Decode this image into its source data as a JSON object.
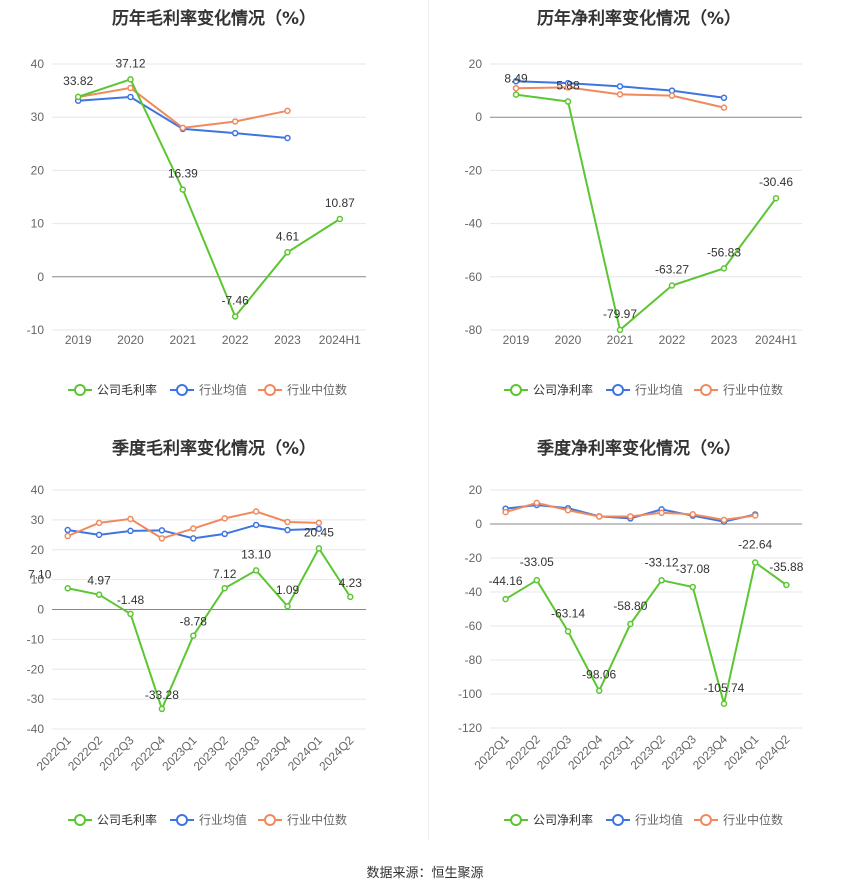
{
  "source_text": "数据来源：恒生聚源",
  "colors": {
    "company": "#5cc632",
    "avg": "#3e75e0",
    "median": "#f08a5d",
    "grid": "#e4e6ef",
    "axis": "#666666",
    "label": "#333333"
  },
  "chart_data": [
    {
      "type": "line",
      "title": "历年毛利率变化情况（%）",
      "categories": [
        "2019",
        "2020",
        "2021",
        "2022",
        "2023",
        "2024H1"
      ],
      "ylim": [
        -10,
        40
      ],
      "yticks": [
        "-10",
        "0",
        "10",
        "20",
        "30",
        "40"
      ],
      "grid": true,
      "legend_position": "bottom",
      "series": [
        {
          "name": "公司毛利率",
          "key": "company",
          "values": [
            33.82,
            37.12,
            16.39,
            -7.46,
            4.61,
            10.87
          ],
          "labels": [
            "33.82",
            "37.12",
            "16.39",
            "-7.46",
            "4.61",
            "10.87"
          ]
        },
        {
          "name": "行业均值",
          "key": "avg",
          "values": [
            33.1,
            33.8,
            27.8,
            27.0,
            26.1,
            null
          ]
        },
        {
          "name": "行业中位数",
          "key": "median",
          "values": [
            33.8,
            35.5,
            28.0,
            29.2,
            31.2,
            null
          ]
        }
      ]
    },
    {
      "type": "line",
      "title": "历年净利率变化情况（%）",
      "categories": [
        "2019",
        "2020",
        "2021",
        "2022",
        "2023",
        "2024H1"
      ],
      "ylim": [
        -80,
        20
      ],
      "yticks": [
        "-80",
        "-60",
        "-40",
        "-20",
        "0",
        "20"
      ],
      "grid": true,
      "legend_position": "bottom",
      "series": [
        {
          "name": "公司净利率",
          "key": "company",
          "values": [
            8.49,
            5.88,
            -79.97,
            -63.27,
            -56.83,
            -30.46
          ],
          "labels": [
            "8.49",
            "5.88",
            "-79.97",
            "-63.27",
            "-56.83",
            "-30.46"
          ]
        },
        {
          "name": "行业均值",
          "key": "avg",
          "values": [
            13.5,
            12.8,
            11.6,
            10.0,
            7.3,
            null
          ]
        },
        {
          "name": "行业中位数",
          "key": "median",
          "values": [
            10.9,
            11.2,
            8.6,
            8.1,
            3.6,
            null
          ]
        }
      ]
    },
    {
      "type": "line",
      "title": "季度毛利率变化情况（%）",
      "categories": [
        "2022Q1",
        "2022Q2",
        "2022Q3",
        "2022Q4",
        "2023Q1",
        "2023Q2",
        "2023Q3",
        "2023Q4",
        "2024Q1",
        "2024Q2"
      ],
      "ylim": [
        -40,
        40
      ],
      "yticks": [
        "-40",
        "-30",
        "-20",
        "-10",
        "0",
        "10",
        "20",
        "30",
        "40"
      ],
      "grid": true,
      "legend_position": "bottom",
      "series": [
        {
          "name": "公司毛利率",
          "key": "company",
          "values": [
            7.1,
            4.97,
            -1.48,
            -33.28,
            -8.78,
            7.12,
            13.1,
            1.09,
            20.45,
            4.23
          ],
          "labels": [
            "7.10",
            "4.97",
            "-1.48",
            "-33.28",
            "-8.78",
            "7.12",
            "13.10",
            "1.09",
            "20.45",
            "4.23"
          ]
        },
        {
          "name": "行业均值",
          "key": "avg",
          "values": [
            26.6,
            25.0,
            26.3,
            26.5,
            23.8,
            25.3,
            28.3,
            26.6,
            27.0,
            null
          ]
        },
        {
          "name": "行业中位数",
          "key": "median",
          "values": [
            24.6,
            29.0,
            30.3,
            23.8,
            27.1,
            30.5,
            32.8,
            29.3,
            29.0,
            null
          ]
        }
      ]
    },
    {
      "type": "line",
      "title": "季度净利率变化情况（%）",
      "categories": [
        "2022Q1",
        "2022Q2",
        "2022Q3",
        "2022Q4",
        "2023Q1",
        "2023Q2",
        "2023Q3",
        "2023Q4",
        "2024Q1",
        "2024Q2"
      ],
      "ylim": [
        -120,
        20
      ],
      "yticks": [
        "-120",
        "-100",
        "-80",
        "-60",
        "-40",
        "-20",
        "0",
        "20"
      ],
      "grid": true,
      "legend_position": "bottom",
      "series": [
        {
          "name": "公司净利率",
          "key": "company",
          "values": [
            -44.16,
            -33.05,
            -63.14,
            -98.06,
            -58.8,
            -33.12,
            -37.08,
            -105.74,
            -22.64,
            -35.88
          ],
          "labels": [
            "-44.16",
            "-33.05",
            "-63.14",
            "-98.06",
            "-58.80",
            "-33.12",
            "-37.08",
            "-105.74",
            "-22.64",
            "-35.88"
          ]
        },
        {
          "name": "行业均值",
          "key": "avg",
          "values": [
            9.0,
            11.2,
            9.3,
            4.5,
            3.3,
            8.6,
            4.9,
            1.4,
            5.6,
            null
          ]
        },
        {
          "name": "行业中位数",
          "key": "median",
          "values": [
            7.0,
            12.4,
            8.1,
            4.4,
            4.5,
            6.6,
            5.7,
            2.4,
            5.0,
            null
          ]
        }
      ]
    }
  ]
}
